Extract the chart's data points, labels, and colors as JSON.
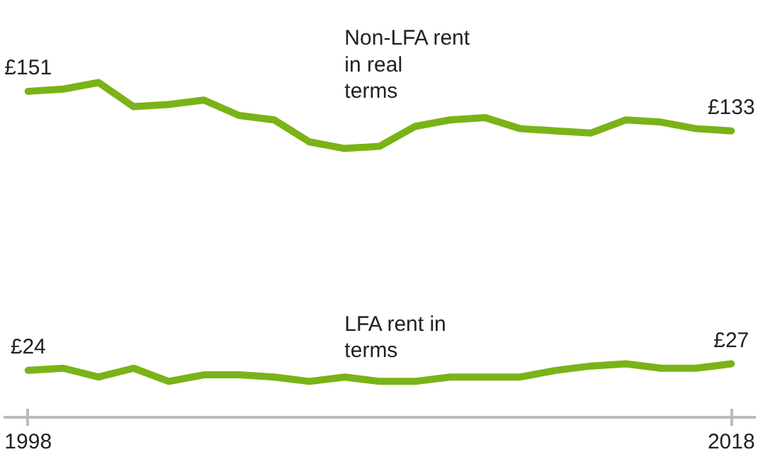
{
  "chart_data": {
    "type": "line",
    "x": [
      1998,
      1999,
      2000,
      2001,
      2002,
      2003,
      2004,
      2005,
      2006,
      2007,
      2008,
      2009,
      2010,
      2011,
      2012,
      2013,
      2014,
      2015,
      2016,
      2017,
      2018
    ],
    "series": [
      {
        "name": "Non-LFA rent in real terms",
        "color": "#7ab317",
        "values": [
          151,
          152,
          155,
          144,
          145,
          147,
          140,
          138,
          128,
          125,
          126,
          135,
          138,
          139,
          134,
          133,
          132,
          138,
          137,
          134,
          133
        ],
        "value_labels": [
          "£151",
          null,
          null,
          null,
          null,
          null,
          null,
          null,
          null,
          null,
          null,
          null,
          null,
          null,
          null,
          null,
          null,
          null,
          null,
          null,
          "£133"
        ]
      },
      {
        "name": "LFA rent in terms",
        "color": "#7ab317",
        "values": [
          24,
          25,
          21,
          25,
          19,
          22,
          22,
          21,
          19,
          21,
          19,
          19,
          21,
          21,
          21,
          24,
          26,
          27,
          25,
          25,
          27
        ],
        "value_labels": [
          "£24",
          null,
          null,
          null,
          null,
          null,
          null,
          null,
          null,
          null,
          null,
          null,
          null,
          null,
          null,
          null,
          null,
          null,
          null,
          null,
          "£27"
        ]
      }
    ],
    "xlim": [
      1997.3,
      2018.7
    ],
    "xticks": [
      1998,
      2018
    ],
    "tick_labels": "x",
    "grid": false,
    "line_style": "solid",
    "marker": "none"
  }
}
